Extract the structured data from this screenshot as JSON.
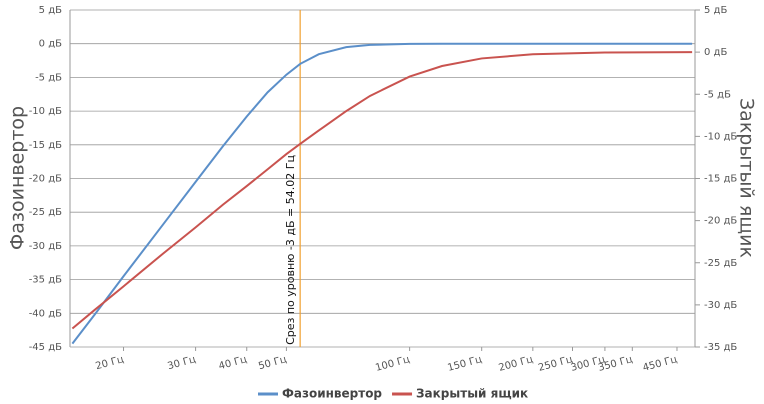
{
  "chart_data": {
    "type": "line",
    "x": [
      15,
      17,
      20,
      25,
      30,
      35,
      40,
      45,
      50,
      54,
      60,
      70,
      80,
      100,
      120,
      150,
      200,
      300,
      490
    ],
    "xlim": [
      14.8,
      498
    ],
    "xscale": "log",
    "xticks": [
      {
        "value": 20,
        "label": "20 Гц"
      },
      {
        "value": 30,
        "label": "30 Гц"
      },
      {
        "value": 40,
        "label": "40 Гц"
      },
      {
        "value": 50,
        "label": "50 Гц"
      },
      {
        "value": 100,
        "label": "100 Гц"
      },
      {
        "value": 150,
        "label": "150 Гц"
      },
      {
        "value": 200,
        "label": "200 Гц"
      },
      {
        "value": 250,
        "label": "250 Гц"
      },
      {
        "value": 300,
        "label": "300 Гц"
      },
      {
        "value": 350,
        "label": "350 Гц"
      },
      {
        "value": 450,
        "label": "450 Гц"
      }
    ],
    "ylabel": "Фазоинвертор",
    "y2label": "Закрытый ящик",
    "ylim": [
      -45,
      5
    ],
    "yticks": [
      {
        "value": 5,
        "label": "5 дБ"
      },
      {
        "value": 0,
        "label": "0 дБ"
      },
      {
        "value": -5,
        "label": "-5 дБ"
      },
      {
        "value": -10,
        "label": "-10 дБ"
      },
      {
        "value": -15,
        "label": "-15 дБ"
      },
      {
        "value": -20,
        "label": "-20 дБ"
      },
      {
        "value": -25,
        "label": "-25 дБ"
      },
      {
        "value": -30,
        "label": "-30 дБ"
      },
      {
        "value": -35,
        "label": "-35 дБ"
      },
      {
        "value": -40,
        "label": "-40 дБ"
      },
      {
        "value": -45,
        "label": "-45 дБ"
      }
    ],
    "y2lim": [
      -35,
      5
    ],
    "y2ticks": [
      {
        "value": 5,
        "label": "5 дБ"
      },
      {
        "value": 0,
        "label": "0 дБ"
      },
      {
        "value": -5,
        "label": "-5 дБ"
      },
      {
        "value": -10,
        "label": "-10 дБ"
      },
      {
        "value": -15,
        "label": "-15 дБ"
      },
      {
        "value": -20,
        "label": "-20 дБ"
      },
      {
        "value": -25,
        "label": "-25 дБ"
      },
      {
        "value": -30,
        "label": "-30 дБ"
      },
      {
        "value": -35,
        "label": "-35 дБ"
      }
    ],
    "grid": true,
    "series": [
      {
        "name": "Фазоинвертор",
        "color": "#5b8fc9",
        "values": [
          -44.5,
          -40.2,
          -34.5,
          -26.8,
          -20.5,
          -15.2,
          -10.8,
          -7.2,
          -4.6,
          -3.0,
          -1.56,
          -0.51,
          -0.18,
          -0.03,
          0,
          0,
          0,
          0,
          0
        ]
      },
      {
        "name": "Закрытый ящик",
        "color": "#c9534f",
        "axis": "y2",
        "values": [
          -32.8,
          -30.6,
          -27.8,
          -23.9,
          -20.8,
          -18.1,
          -15.9,
          -13.9,
          -12.1,
          -10.9,
          -9.3,
          -7.0,
          -5.2,
          -2.9,
          -1.65,
          -0.75,
          -0.25,
          -0.05,
          0
        ]
      }
    ],
    "cutoff": {
      "x": 54.02,
      "label": "Срез по уровню -3 дБ = 54.02 Гц",
      "color": "#f0a030"
    },
    "legend": "bottom"
  }
}
